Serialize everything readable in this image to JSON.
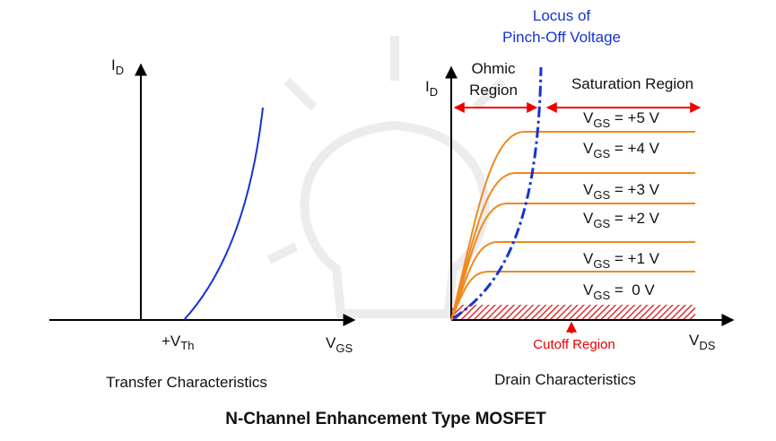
{
  "title": "N-Channel Enhancement Type MOSFET",
  "transfer": {
    "caption": "Transfer Characteristics",
    "y_axis": {
      "main": "I",
      "sub": "D"
    },
    "x_axis": {
      "main": "V",
      "sub": "GS"
    },
    "threshold": {
      "main": "+V",
      "sub": "Th"
    }
  },
  "drain": {
    "caption": "Drain Characteristics",
    "y_axis": {
      "main": "I",
      "sub": "D"
    },
    "x_axis": {
      "main": "V",
      "sub": "DS"
    },
    "locus": [
      "Locus of",
      "Pinch-Off Voltage"
    ],
    "ohmic": [
      "Ohmic",
      "Region"
    ],
    "saturation": "Saturation Region",
    "cutoff": "Cutoff Region",
    "curves": [
      {
        "main": "V",
        "sub": "GS",
        "rest": " = +5 V"
      },
      {
        "main": "V",
        "sub": "GS",
        "rest": " = +4 V"
      },
      {
        "main": "V",
        "sub": "GS",
        "rest": " = +3 V"
      },
      {
        "main": "V",
        "sub": "GS",
        "rest": " = +2 V"
      },
      {
        "main": "V",
        "sub": "GS",
        "rest": " = +1 V"
      },
      {
        "main": "V",
        "sub": "GS",
        "rest": " =  0 V"
      }
    ]
  }
}
